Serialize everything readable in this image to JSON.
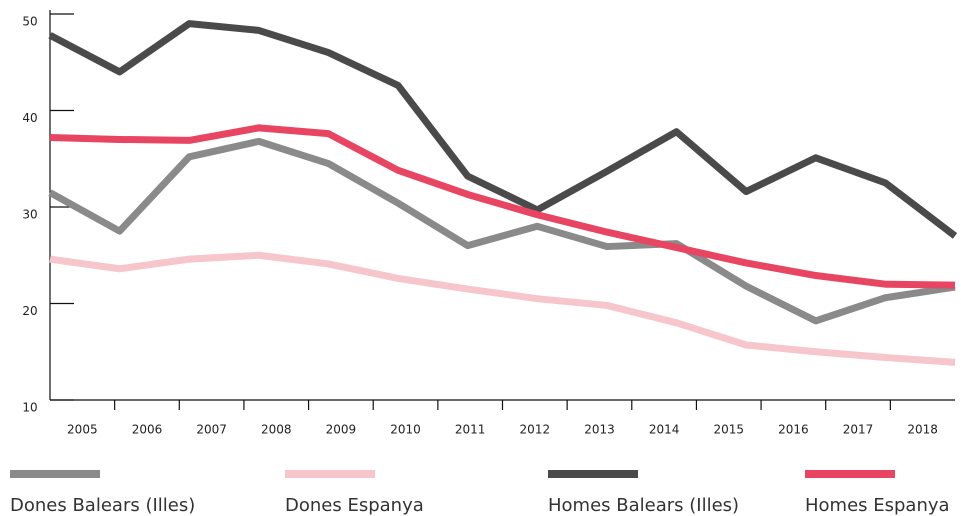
{
  "chart_data": {
    "type": "line",
    "categories": [
      "2005",
      "2006",
      "2007",
      "2008",
      "2009",
      "2010",
      "2011",
      "2012",
      "2013",
      "2014",
      "2015",
      "2016",
      "2017",
      "2018"
    ],
    "series": [
      {
        "name": "Dones Balears (Illes)",
        "color": "#8a8a8a",
        "values": [
          31.5,
          27.5,
          35.2,
          36.8,
          34.5,
          30.4,
          26,
          28,
          25.9,
          26.2,
          21.8,
          18.2,
          20.6,
          21.7
        ]
      },
      {
        "name": "Dones Espanya",
        "color": "#f7c5cc",
        "values": [
          24.6,
          23.6,
          24.6,
          25,
          24.1,
          22.6,
          21.5,
          20.5,
          19.8,
          18,
          15.7,
          15,
          14.4,
          13.9
        ]
      },
      {
        "name": "Homes Balears (Illes)",
        "color": "#4a4a4a",
        "values": [
          47.8,
          44,
          49,
          48.3,
          46,
          42.6,
          33.2,
          29.7,
          33.7,
          37.8,
          31.6,
          35.1,
          32.5,
          27
        ]
      },
      {
        "name": "Homes Espanya",
        "color": "#e84562",
        "values": [
          37.2,
          37,
          36.9,
          38.2,
          37.6,
          33.8,
          31.3,
          29.2,
          27.4,
          25.8,
          24.2,
          22.9,
          22,
          21.9
        ]
      }
    ],
    "ylim": [
      10,
      50
    ],
    "yticks": [
      10,
      20,
      30,
      40,
      50
    ]
  }
}
